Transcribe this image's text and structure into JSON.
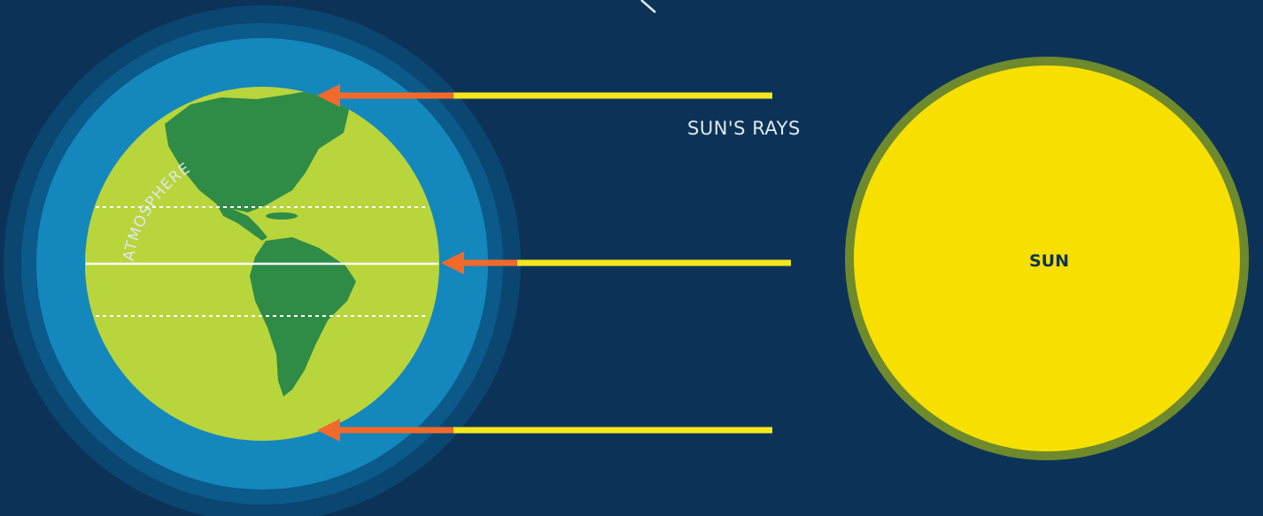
{
  "labels": {
    "atmosphere": "ATMOSPHERE",
    "sun_rays": "SUN'S RAYS",
    "sun": "SUN"
  },
  "colors": {
    "background": "#0c3357",
    "atmosphere_outer": "#0b5a8a",
    "atmosphere_inner": "#1b8cc2",
    "earth": "#b8d53c",
    "land": "#2e8c46",
    "sun": "#f7e000",
    "sun_rim": "#6f8a2c",
    "ray": "#f6e71c",
    "ray_in_atmosphere": "#f26a2b"
  },
  "icons": {
    "sun": "sun-icon",
    "earth": "globe-icon",
    "ray_arrow": "arrow-left-icon"
  }
}
